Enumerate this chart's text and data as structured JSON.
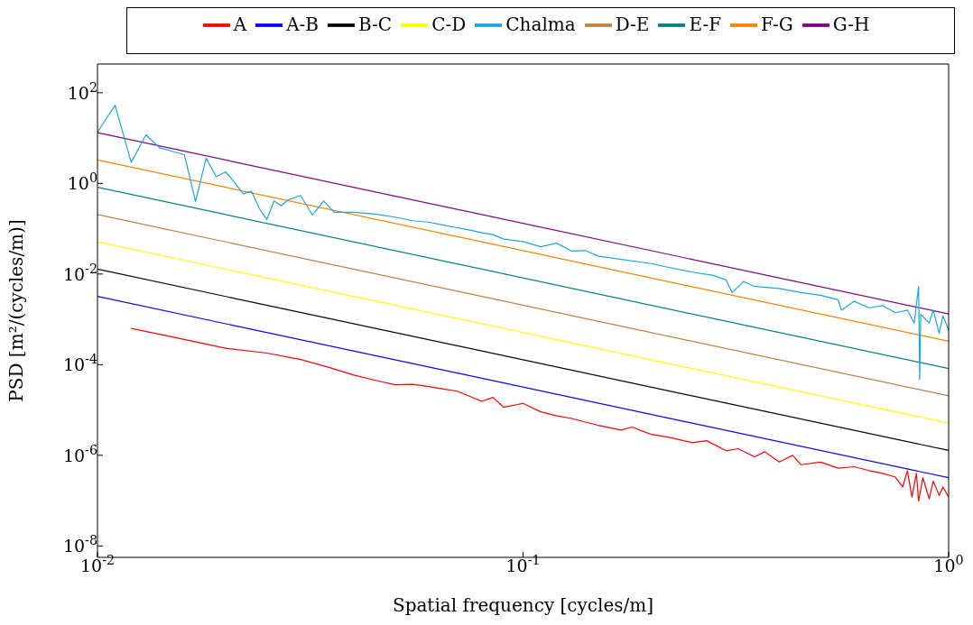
{
  "chart_data": {
    "type": "line",
    "xlabel": "Spatial frequency [cycles/m]",
    "ylabel": "PSD [m²/(cycles/m)]",
    "log": "xy",
    "legend": "top",
    "xlim": [
      0.01,
      1
    ],
    "xticks": [
      {
        "value": 0.01,
        "label": "10$^{-2}$"
      },
      {
        "value": 0.1,
        "label": "10$^{-1}$"
      },
      {
        "value": 1,
        "label": "10$^{0}$"
      }
    ],
    "ylim": [
      5.6e-09,
      430
    ],
    "yticks": [
      {
        "value": 1e-08,
        "label": "10$^{-8}$"
      },
      {
        "value": 1e-06,
        "label": "10$^{-6}$"
      },
      {
        "value": 0.0001,
        "label": "10$^{-4}$"
      },
      {
        "value": 0.01,
        "label": "10$^{-2}$"
      },
      {
        "value": 1,
        "label": "10$^{0}$"
      },
      {
        "value": 100,
        "label": "10$^{2}$"
      }
    ],
    "series": [
      {
        "name": "A",
        "color": "#ff0000",
        "x": [
          0.012,
          0.015,
          0.02,
          0.025,
          0.03,
          0.035,
          0.04,
          0.045,
          0.05,
          0.055,
          0.06,
          0.065,
          0.07,
          0.075,
          0.08,
          0.085,
          0.09,
          0.1,
          0.11,
          0.12,
          0.13,
          0.14,
          0.15,
          0.17,
          0.18,
          0.2,
          0.22,
          0.25,
          0.27,
          0.3,
          0.32,
          0.35,
          0.37,
          0.4,
          0.43,
          0.45,
          0.5,
          0.55,
          0.6,
          0.65,
          0.7,
          0.75,
          0.78,
          0.8,
          0.82,
          0.84,
          0.85,
          0.87,
          0.9,
          0.92,
          0.95,
          0.97,
          1.0
        ],
        "values": [
          0.00063,
          0.00041,
          0.00023,
          0.00018,
          0.00013,
          8.7e-05,
          5.9e-05,
          4.5e-05,
          3.6e-05,
          3.7e-05,
          3.3e-05,
          2.9e-05,
          2.6e-05,
          2e-05,
          1.55e-05,
          1.9e-05,
          1.15e-05,
          1.4e-05,
          9.1e-06,
          7.4e-06,
          6.5e-06,
          5.4e-06,
          4.6e-06,
          3.6e-06,
          4.2e-06,
          2.9e-06,
          2.5e-06,
          1.9e-06,
          2.1e-06,
          1.26e-06,
          1.4e-06,
          9.3e-07,
          1.2e-06,
          7.1e-07,
          1e-06,
          6.2e-07,
          7.1e-07,
          5.2e-07,
          5.6e-07,
          4.6e-07,
          4e-07,
          3.3e-07,
          2e-07,
          4.6e-07,
          1.2e-07,
          4e-07,
          9.8e-08,
          3.2e-07,
          1.1e-07,
          2.7e-07,
          1.3e-07,
          2e-07,
          1.2e-07
        ]
      },
      {
        "name": "A-B",
        "color": "#0000ff",
        "x": [
          0.01,
          1
        ],
        "values": [
          0.0032,
          3.2e-07
        ]
      },
      {
        "name": "B-C",
        "color": "#000000",
        "x": [
          0.01,
          1
        ],
        "values": [
          0.0128,
          1.28e-06
        ]
      },
      {
        "name": "C-D",
        "color": "#ffff00",
        "x": [
          0.01,
          1
        ],
        "values": [
          0.0512,
          5.12e-06
        ]
      },
      {
        "name": "D-E",
        "color": "#bf8040",
        "x": [
          0.01,
          1
        ],
        "values": [
          0.2048,
          2.048e-05
        ]
      },
      {
        "name": "E-F",
        "color": "#008080",
        "x": [
          0.01,
          1
        ],
        "values": [
          0.8192,
          8.192e-05
        ]
      },
      {
        "name": "F-G",
        "color": "#ff8000",
        "x": [
          0.01,
          1
        ],
        "values": [
          3.2768,
          0.00032768
        ]
      },
      {
        "name": "G-H",
        "color": "#800080",
        "x": [
          0.01,
          1
        ],
        "values": [
          13.1072,
          0.00131072
        ]
      },
      {
        "name": "Chalma",
        "color": "#1aa6e0",
        "x": [
          0.01,
          0.011,
          0.012,
          0.013,
          0.014,
          0.015,
          0.016,
          0.017,
          0.018,
          0.019,
          0.02,
          0.021,
          0.022,
          0.023,
          0.024,
          0.025,
          0.026,
          0.027,
          0.028,
          0.03,
          0.032,
          0.034,
          0.036,
          0.04,
          0.045,
          0.05,
          0.055,
          0.06,
          0.065,
          0.07,
          0.075,
          0.08,
          0.085,
          0.09,
          0.1,
          0.11,
          0.12,
          0.13,
          0.14,
          0.15,
          0.17,
          0.2,
          0.22,
          0.25,
          0.28,
          0.3,
          0.31,
          0.33,
          0.35,
          0.4,
          0.45,
          0.5,
          0.55,
          0.56,
          0.6,
          0.65,
          0.7,
          0.75,
          0.8,
          0.83,
          0.85,
          0.855,
          0.86,
          0.9,
          0.92,
          0.95,
          0.97,
          1.0
        ],
        "values": [
          13.5,
          53,
          2.9,
          11.8,
          6.1,
          5.1,
          4.3,
          0.4,
          3.6,
          1.4,
          1.8,
          1.05,
          0.59,
          0.67,
          0.28,
          0.16,
          0.41,
          0.32,
          0.43,
          0.54,
          0.2,
          0.41,
          0.23,
          0.23,
          0.21,
          0.18,
          0.15,
          0.14,
          0.12,
          0.105,
          0.093,
          0.081,
          0.074,
          0.059,
          0.052,
          0.04,
          0.048,
          0.032,
          0.033,
          0.025,
          0.021,
          0.017,
          0.014,
          0.011,
          0.0093,
          0.0074,
          0.0039,
          0.0069,
          0.0053,
          0.0048,
          0.0039,
          0.0034,
          0.0027,
          0.0016,
          0.0025,
          0.0018,
          0.002,
          0.0014,
          0.0016,
          0.00083,
          0.0053,
          4.7e-05,
          0.0013,
          0.00083,
          0.0016,
          0.00049,
          0.0012,
          0.00058
        ]
      }
    ]
  }
}
